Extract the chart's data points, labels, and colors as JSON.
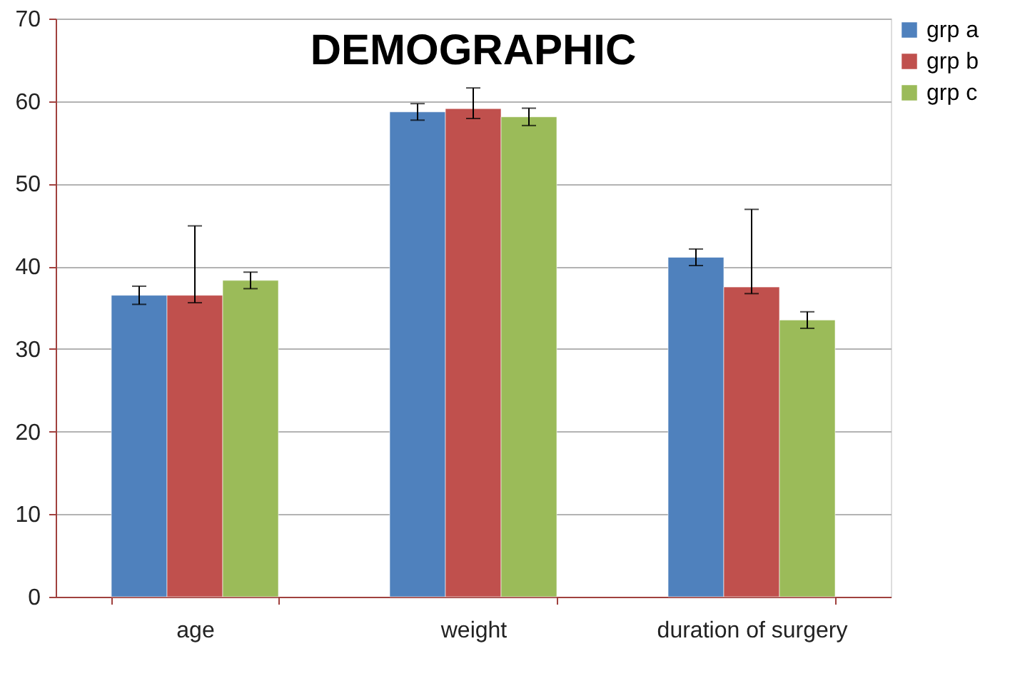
{
  "chart_data": {
    "type": "bar",
    "title": "DEMOGRAPHIC",
    "categories": [
      "age",
      "weight",
      "duration of surgery"
    ],
    "series": [
      {
        "name": "grp a",
        "color": "#4f81bd",
        "values": [
          36.5,
          58.7,
          41.1
        ],
        "errors": [
          1.1,
          1.0,
          1.0
        ]
      },
      {
        "name": "grp b",
        "color": "#c0504d",
        "values": [
          36.5,
          59.1,
          37.5
        ],
        "errors": [
          [
            35.6,
            44.9
          ],
          [
            57.9,
            61.6
          ],
          [
            36.7,
            46.9
          ]
        ]
      },
      {
        "name": "grp c",
        "color": "#9bbb59",
        "values": [
          38.3,
          58.1,
          33.5
        ],
        "errors": [
          1.0,
          1.05,
          1.0
        ]
      }
    ],
    "ylim": [
      0,
      70
    ],
    "yticks": [
      0,
      10,
      20,
      30,
      40,
      50,
      60,
      70
    ],
    "grid": "y",
    "legend": "right"
  }
}
